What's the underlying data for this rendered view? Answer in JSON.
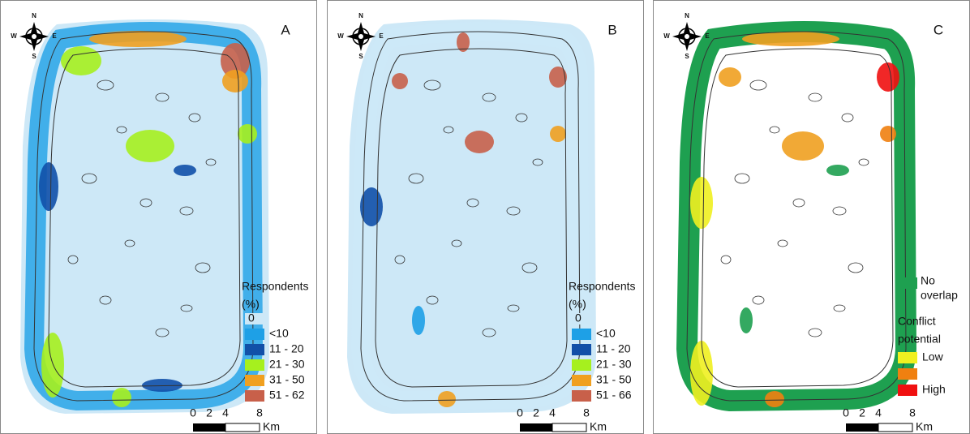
{
  "panels": [
    {
      "letter": "A",
      "compass": {
        "n": "N",
        "s": "S",
        "w": "W",
        "e": "E"
      },
      "legend": {
        "title": [
          "Respondents",
          "(%)"
        ],
        "items": [
          {
            "label": "0",
            "color": "#cde8f7"
          },
          {
            "label": "<10",
            "color": "#1ea0e6"
          },
          {
            "label": "11 - 20",
            "color": "#1150a8"
          },
          {
            "label": "21 - 30",
            "color": "#a6f01e"
          },
          {
            "label": "31 - 50",
            "color": "#f0a020"
          },
          {
            "label": "51 - 62",
            "color": "#c8604a"
          }
        ]
      },
      "scale": {
        "ticks": [
          "0",
          "2",
          "4",
          "8"
        ],
        "unit": "Km"
      }
    },
    {
      "letter": "B",
      "compass": {
        "n": "N",
        "s": "S",
        "w": "W",
        "e": "E"
      },
      "legend": {
        "title": [
          "Respondents",
          "(%)"
        ],
        "items": [
          {
            "label": "0",
            "color": "#cde8f7"
          },
          {
            "label": "<10",
            "color": "#1ea0e6"
          },
          {
            "label": "11 - 20",
            "color": "#1150a8"
          },
          {
            "label": "21 - 30",
            "color": "#a6f01e"
          },
          {
            "label": "31 - 50",
            "color": "#f0a020"
          },
          {
            "label": "51 - 66",
            "color": "#c8604a"
          }
        ]
      },
      "scale": {
        "ticks": [
          "0",
          "2",
          "4",
          "8"
        ],
        "unit": "Km"
      }
    },
    {
      "letter": "C",
      "compass": {
        "n": "N",
        "s": "S",
        "w": "W",
        "e": "E"
      },
      "legend": {
        "overlap": {
          "label": [
            "No",
            "overlap"
          ],
          "color": "#1ea050"
        },
        "title": [
          "Conflict",
          "potential"
        ],
        "items": [
          {
            "label": "Low",
            "color": "#f0f020"
          },
          {
            "color": "#f08010"
          },
          {
            "label": "High",
            "color": "#f01010"
          }
        ]
      },
      "scale": {
        "ticks": [
          "0",
          "2",
          "4",
          "8"
        ],
        "unit": "Km"
      }
    }
  ]
}
